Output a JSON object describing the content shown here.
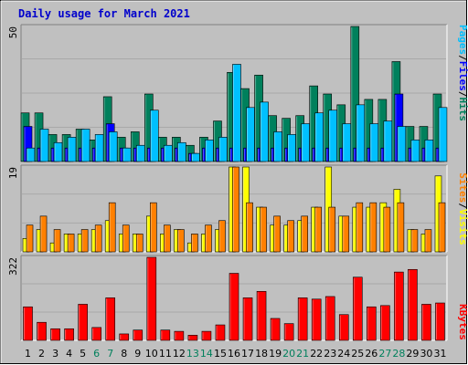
{
  "title": "Daily usage for March 2021",
  "colors": {
    "title": "#0000cc",
    "background": "#c0c0c0",
    "panel": "#c0c0c0",
    "grid": "#a9a9a9",
    "hits": "#00805c",
    "files": "#0000ff",
    "pages": "#00c0ff",
    "visits": "#ffff00",
    "sites": "#ff8000",
    "kbytes": "#ff0000",
    "weekend_day": "#00805c",
    "weekday": "#000000"
  },
  "legend": {
    "top": [
      "Pages",
      "/",
      "Files",
      "/",
      "Hits"
    ],
    "middle": [
      "Sites",
      "/",
      "Visits"
    ],
    "bottom": [
      "KBytes"
    ]
  },
  "chart_data": [
    {
      "type": "bar",
      "panel": "top",
      "ymax_label": "50",
      "ylim": [
        0,
        50
      ],
      "categories": [
        "1",
        "2",
        "3",
        "4",
        "5",
        "6",
        "7",
        "8",
        "9",
        "10",
        "11",
        "12",
        "13",
        "14",
        "15",
        "16",
        "17",
        "18",
        "19",
        "20",
        "21",
        "22",
        "23",
        "24",
        "25",
        "26",
        "27",
        "28",
        "29",
        "30",
        "31"
      ],
      "series": [
        {
          "name": "Hits",
          "values": [
            18,
            18,
            10,
            10,
            12,
            8,
            24,
            9,
            11,
            25,
            9,
            9,
            6,
            9,
            15,
            33,
            27,
            32,
            17,
            16,
            17,
            28,
            25,
            21,
            50,
            23,
            23,
            37,
            13,
            13,
            25
          ]
        },
        {
          "name": "Files",
          "values": [
            13,
            5,
            5,
            5,
            5,
            5,
            14,
            5,
            5,
            5,
            5,
            5,
            3,
            5,
            5,
            5,
            5,
            5,
            5,
            5,
            5,
            5,
            5,
            5,
            5,
            5,
            5,
            25,
            5,
            5,
            5
          ]
        },
        {
          "name": "Pages",
          "values": [
            5,
            12,
            7,
            9,
            12,
            10,
            11,
            5,
            6,
            19,
            6,
            7,
            3,
            8,
            9,
            36,
            20,
            22,
            11,
            10,
            14,
            18,
            19,
            14,
            21,
            14,
            15,
            13,
            8,
            8,
            20
          ]
        }
      ]
    },
    {
      "type": "bar",
      "panel": "middle",
      "ymax_label": "19",
      "ylim": [
        0,
        19
      ],
      "categories": [
        "1",
        "2",
        "3",
        "4",
        "5",
        "6",
        "7",
        "8",
        "9",
        "10",
        "11",
        "12",
        "13",
        "14",
        "15",
        "16",
        "17",
        "18",
        "19",
        "20",
        "21",
        "22",
        "23",
        "24",
        "25",
        "26",
        "27",
        "28",
        "29",
        "30",
        "31"
      ],
      "series": [
        {
          "name": "Visits",
          "values": [
            3,
            5,
            2,
            4,
            4,
            5,
            7,
            4,
            4,
            8,
            4,
            5,
            2,
            4,
            5,
            19,
            19,
            10,
            6,
            6,
            7,
            10,
            19,
            8,
            10,
            10,
            11,
            14,
            5,
            4,
            17
          ]
        },
        {
          "name": "Sites",
          "values": [
            6,
            8,
            5,
            4,
            5,
            6,
            11,
            6,
            4,
            11,
            6,
            5,
            4,
            6,
            7,
            19,
            11,
            10,
            8,
            7,
            8,
            10,
            10,
            8,
            11,
            11,
            10,
            11,
            5,
            5,
            11
          ]
        }
      ]
    },
    {
      "type": "bar",
      "panel": "bottom",
      "ymax_label": "322",
      "ylim": [
        0,
        322
      ],
      "categories": [
        "1",
        "2",
        "3",
        "4",
        "5",
        "6",
        "7",
        "8",
        "9",
        "10",
        "11",
        "12",
        "13",
        "14",
        "15",
        "16",
        "17",
        "18",
        "19",
        "20",
        "21",
        "22",
        "23",
        "24",
        "25",
        "26",
        "27",
        "28",
        "29",
        "30",
        "31"
      ],
      "series": [
        {
          "name": "KBytes",
          "values": [
            130,
            70,
            45,
            45,
            140,
            50,
            165,
            25,
            40,
            322,
            40,
            35,
            20,
            35,
            60,
            260,
            165,
            190,
            85,
            65,
            165,
            160,
            170,
            100,
            245,
            130,
            135,
            265,
            275,
            140,
            145
          ]
        }
      ]
    }
  ],
  "weekend_days": [
    6,
    7,
    13,
    14,
    20,
    21,
    27,
    28
  ]
}
